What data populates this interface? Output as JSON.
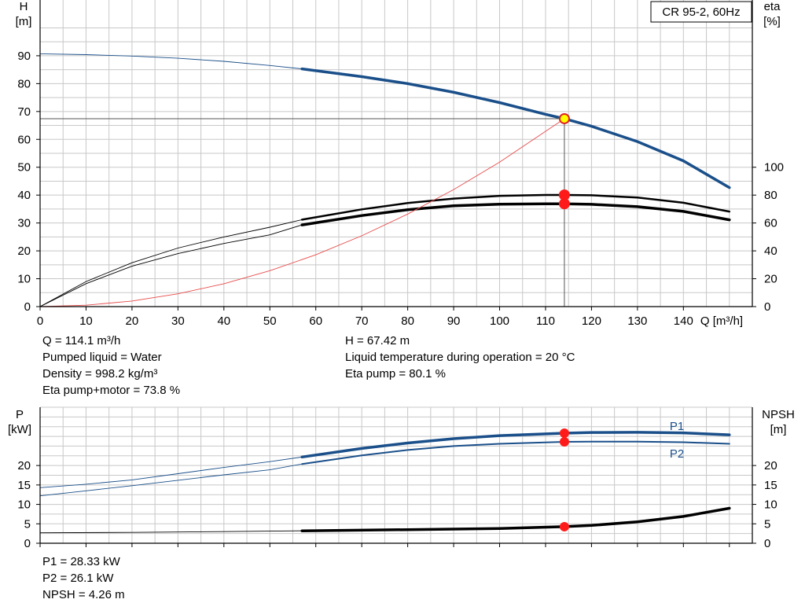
{
  "chart_data": [
    {
      "type": "line",
      "title": "CR 95-2, 60Hz",
      "xlabel": "Q [m³/h]",
      "ylabel_left": [
        "H",
        "[m]"
      ],
      "ylabel_right": [
        "eta",
        "[%]"
      ],
      "xlim": [
        0,
        155
      ],
      "ylim_left": [
        0,
        100
      ],
      "ylim_right_eta": [
        0,
        100
      ],
      "x_ticks": [
        0,
        10,
        20,
        30,
        40,
        50,
        60,
        70,
        80,
        90,
        100,
        110,
        120,
        130,
        140
      ],
      "y_ticks_left": [
        0,
        10,
        20,
        30,
        40,
        50,
        60,
        70,
        80,
        90
      ],
      "y_ticks_right": [
        0,
        20,
        40,
        60,
        80,
        100
      ],
      "grid": true,
      "series": [
        {
          "key": "head",
          "axis": "left",
          "color": "#1a4f8a",
          "thin_until": 57,
          "x": [
            0,
            10,
            20,
            30,
            40,
            50,
            57,
            70,
            80,
            90,
            100,
            110,
            114.1,
            120,
            130,
            140,
            150
          ],
          "y": [
            90.7,
            90.4,
            89.9,
            89.1,
            88.0,
            86.5,
            85.3,
            82.5,
            80.0,
            76.9,
            73.2,
            69.0,
            67.4,
            64.7,
            59.2,
            52.3,
            42.7
          ]
        },
        {
          "key": "eta_pump",
          "axis": "right_eta",
          "color": "#000000",
          "thin_until": 57,
          "x": [
            0,
            10,
            20,
            30,
            40,
            50,
            57,
            70,
            80,
            90,
            100,
            110,
            114.1,
            120,
            130,
            140,
            150
          ],
          "y": [
            0,
            18,
            31.5,
            42,
            50,
            57,
            62.4,
            69.8,
            74.3,
            77.5,
            79.5,
            80.1,
            80.1,
            79.9,
            78.3,
            74.5,
            68.2
          ]
        },
        {
          "key": "eta_pump_motor",
          "axis": "right_eta",
          "color": "#000000",
          "thin_until": 57,
          "x": [
            0,
            10,
            20,
            30,
            40,
            50,
            57,
            70,
            80,
            90,
            100,
            110,
            114.1,
            120,
            130,
            140,
            150
          ],
          "y": [
            0,
            16.5,
            29,
            38,
            45.3,
            51.5,
            58.6,
            65.3,
            69.5,
            72.3,
            73.5,
            73.8,
            73.8,
            73.4,
            71.7,
            68.3,
            62.3
          ]
        },
        {
          "key": "system",
          "axis": "left",
          "color": "#e84b4b",
          "thin_until": 155,
          "x": [
            0,
            10,
            20,
            30,
            40,
            50,
            60,
            70,
            80,
            90,
            100,
            114.1
          ],
          "y": [
            0,
            0.5,
            2.0,
            4.6,
            8.2,
            12.9,
            18.6,
            25.4,
            33.2,
            42.0,
            51.8,
            67.4
          ]
        }
      ],
      "duty_points": [
        {
          "axis": "left",
          "x": 114.1,
          "y": 67.42,
          "marker": "yellow"
        },
        {
          "axis": "right_eta",
          "x": 114.1,
          "y": 80.1,
          "marker": "red"
        },
        {
          "axis": "right_eta",
          "x": 114.1,
          "y": 73.8,
          "marker": "red"
        }
      ]
    },
    {
      "type": "line",
      "ylabel_left": [
        "P",
        "[kW]"
      ],
      "ylabel_right": [
        "NPSH",
        "[m]"
      ],
      "xlim": [
        0,
        155
      ],
      "ylim_left": [
        0,
        30
      ],
      "ylim_right": [
        0,
        30
      ],
      "y_ticks_left": [
        0,
        5,
        10,
        15,
        20
      ],
      "y_ticks_right": [
        0,
        5,
        10,
        15,
        20
      ],
      "grid": true,
      "series": [
        {
          "key": "p1",
          "name": "P1",
          "axis": "left",
          "color": "#1a4f8a",
          "thin_until": 57,
          "x": [
            0,
            10,
            20,
            30,
            40,
            50,
            57,
            70,
            80,
            90,
            100,
            114.1,
            120,
            130,
            140,
            150
          ],
          "y": [
            14.3,
            15.2,
            16.3,
            17.9,
            19.5,
            21.0,
            22.2,
            24.4,
            25.8,
            26.9,
            27.7,
            28.33,
            28.5,
            28.55,
            28.4,
            27.9
          ]
        },
        {
          "key": "p2",
          "name": "P2",
          "axis": "left",
          "color": "#1a4f8a",
          "thin_until": 57,
          "x": [
            0,
            10,
            20,
            30,
            40,
            50,
            57,
            70,
            80,
            90,
            100,
            114.1,
            120,
            130,
            140,
            150
          ],
          "y": [
            12.2,
            13.5,
            14.8,
            16.2,
            17.6,
            18.9,
            20.4,
            22.6,
            24.0,
            25.0,
            25.6,
            26.1,
            26.15,
            26.15,
            26.0,
            25.6
          ]
        },
        {
          "key": "npsh",
          "axis": "right",
          "color": "#000000",
          "thin_until": 57,
          "x": [
            0,
            20,
            40,
            57,
            80,
            100,
            114.1,
            120,
            130,
            140,
            150
          ],
          "y": [
            2.7,
            2.8,
            3.0,
            3.2,
            3.5,
            3.8,
            4.26,
            4.6,
            5.5,
            6.9,
            9.0
          ]
        }
      ],
      "duty_points": [
        {
          "axis": "left",
          "x": 114.1,
          "y": 28.33,
          "marker": "red"
        },
        {
          "axis": "left",
          "x": 114.1,
          "y": 26.1,
          "marker": "red"
        },
        {
          "axis": "right",
          "x": 114.1,
          "y": 4.26,
          "marker": "red"
        }
      ]
    }
  ],
  "info_top_left": [
    "Q = 114.1 m³/h",
    "Pumped liquid = Water",
    "Density = 998.2 kg/m³",
    "Eta pump+motor = 73.8 %"
  ],
  "info_top_right": [
    "H = 67.42 m",
    "Liquid temperature during operation = 20 °C",
    "Eta pump = 80.1 %"
  ],
  "info_bottom": [
    "P1 = 28.33 kW",
    "P2 = 26.1 kW",
    "NPSH = 4.26 m"
  ],
  "colors": {
    "head": "#1a4f8a",
    "power": "#1a4f8a",
    "eta": "#000000",
    "npsh": "#000000",
    "system": "#e84b4b",
    "grid": "#c8c8c8",
    "marker_red": "#ff1a1a",
    "marker_yellow": "#ffff00"
  }
}
